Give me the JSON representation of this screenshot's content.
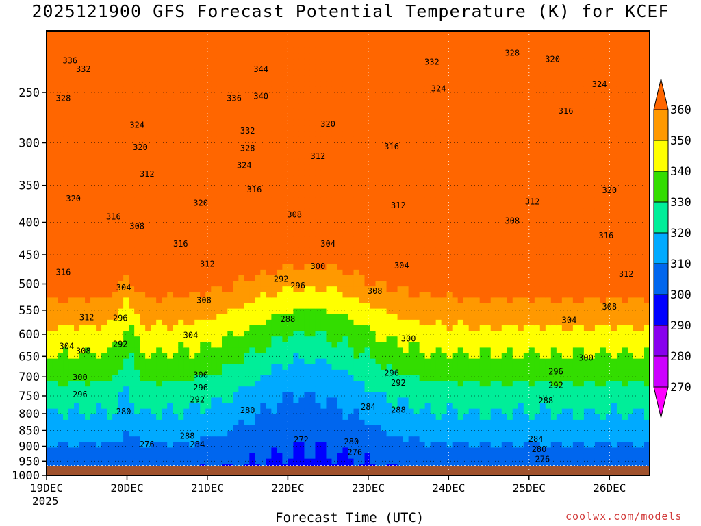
{
  "chart_data": {
    "type": "heatmap",
    "title": "2025121900 GFS Forecast Potential Temperature (K) for KCEF",
    "xlabel": "Forecast Time (UTC)",
    "ylabel": "",
    "x_ticks": [
      "19DEC",
      "20DEC",
      "21DEC",
      "22DEC",
      "23DEC",
      "24DEC",
      "25DEC",
      "26DEC"
    ],
    "x_tick_year": "2025",
    "x_range_hours": [
      0,
      180
    ],
    "y_ticks": [
      250,
      300,
      350,
      400,
      450,
      500,
      550,
      600,
      650,
      700,
      750,
      800,
      850,
      900,
      950,
      1000
    ],
    "y_range_hPa": [
      200,
      1000
    ],
    "y_scale": "log",
    "grid": true,
    "colorbar": {
      "levels": [
        270,
        280,
        290,
        300,
        310,
        320,
        330,
        340,
        350,
        360
      ],
      "colors": [
        "#ff00ff",
        "#cc00ff",
        "#8800ee",
        "#0000ff",
        "#0066ee",
        "#00aaff",
        "#00ee99",
        "#33dd00",
        "#ffff00",
        "#ff9900",
        "#ff6600"
      ],
      "extend": "both",
      "position": "right"
    },
    "contour_labels": [
      {
        "value": "336",
        "t": 7,
        "p": 225
      },
      {
        "value": "332",
        "t": 11,
        "p": 232
      },
      {
        "value": "328",
        "t": 5,
        "p": 258
      },
      {
        "value": "324",
        "t": 27,
        "p": 284
      },
      {
        "value": "320",
        "t": 28,
        "p": 308
      },
      {
        "value": "312",
        "t": 30,
        "p": 339
      },
      {
        "value": "320",
        "t": 8,
        "p": 371
      },
      {
        "value": "316",
        "t": 20,
        "p": 396
      },
      {
        "value": "308",
        "t": 27,
        "p": 410
      },
      {
        "value": "316",
        "t": 40,
        "p": 437
      },
      {
        "value": "316",
        "t": 5,
        "p": 484
      },
      {
        "value": "304",
        "t": 23,
        "p": 512
      },
      {
        "value": "312",
        "t": 12,
        "p": 570
      },
      {
        "value": "296",
        "t": 22,
        "p": 572
      },
      {
        "value": "304",
        "t": 6,
        "p": 633
      },
      {
        "value": "308",
        "t": 11,
        "p": 644
      },
      {
        "value": "292",
        "t": 22,
        "p": 628
      },
      {
        "value": "300",
        "t": 10,
        "p": 708
      },
      {
        "value": "296",
        "t": 10,
        "p": 754
      },
      {
        "value": "280",
        "t": 23,
        "p": 802
      },
      {
        "value": "276",
        "t": 30,
        "p": 903
      },
      {
        "value": "336",
        "t": 56,
        "p": 258
      },
      {
        "value": "344",
        "t": 64,
        "p": 232
      },
      {
        "value": "340",
        "t": 64,
        "p": 256
      },
      {
        "value": "332",
        "t": 60,
        "p": 290
      },
      {
        "value": "328",
        "t": 60,
        "p": 309
      },
      {
        "value": "324",
        "t": 59,
        "p": 329
      },
      {
        "value": "320",
        "t": 46,
        "p": 377
      },
      {
        "value": "316",
        "t": 62,
        "p": 359
      },
      {
        "value": "312",
        "t": 48,
        "p": 470
      },
      {
        "value": "308",
        "t": 47,
        "p": 536
      },
      {
        "value": "304",
        "t": 43,
        "p": 608
      },
      {
        "value": "300",
        "t": 46,
        "p": 702
      },
      {
        "value": "296",
        "t": 46,
        "p": 735
      },
      {
        "value": "292",
        "t": 45,
        "p": 768
      },
      {
        "value": "288",
        "t": 42,
        "p": 876
      },
      {
        "value": "284",
        "t": 45,
        "p": 903
      },
      {
        "value": "280",
        "t": 60,
        "p": 798
      },
      {
        "value": "272",
        "t": 76,
        "p": 888
      },
      {
        "value": "276",
        "t": 92,
        "p": 929
      },
      {
        "value": "280",
        "t": 91,
        "p": 894
      },
      {
        "value": "284",
        "t": 96,
        "p": 788
      },
      {
        "value": "320",
        "t": 84,
        "p": 283
      },
      {
        "value": "312",
        "t": 81,
        "p": 318
      },
      {
        "value": "308",
        "t": 74,
        "p": 393
      },
      {
        "value": "304",
        "t": 84,
        "p": 437
      },
      {
        "value": "300",
        "t": 81,
        "p": 474
      },
      {
        "value": "292",
        "t": 70,
        "p": 496
      },
      {
        "value": "296",
        "t": 75,
        "p": 508
      },
      {
        "value": "288",
        "t": 72,
        "p": 574
      },
      {
        "value": "308",
        "t": 98,
        "p": 518
      },
      {
        "value": "316",
        "t": 103,
        "p": 307
      },
      {
        "value": "312",
        "t": 105,
        "p": 380
      },
      {
        "value": "304",
        "t": 106,
        "p": 473
      },
      {
        "value": "300",
        "t": 108,
        "p": 616
      },
      {
        "value": "296",
        "t": 103,
        "p": 697
      },
      {
        "value": "292",
        "t": 105,
        "p": 723
      },
      {
        "value": "288",
        "t": 105,
        "p": 797
      },
      {
        "value": "332",
        "t": 115,
        "p": 226
      },
      {
        "value": "328",
        "t": 139,
        "p": 219
      },
      {
        "value": "324",
        "t": 117,
        "p": 249
      },
      {
        "value": "320",
        "t": 151,
        "p": 224
      },
      {
        "value": "316",
        "t": 155,
        "p": 270
      },
      {
        "value": "312",
        "t": 145,
        "p": 375
      },
      {
        "value": "308",
        "t": 139,
        "p": 402
      },
      {
        "value": "304",
        "t": 156,
        "p": 576
      },
      {
        "value": "300",
        "t": 161,
        "p": 660
      },
      {
        "value": "296",
        "t": 152,
        "p": 694
      },
      {
        "value": "292",
        "t": 152,
        "p": 729
      },
      {
        "value": "288",
        "t": 149,
        "p": 771
      },
      {
        "value": "284",
        "t": 146,
        "p": 886
      },
      {
        "value": "280",
        "t": 147,
        "p": 919
      },
      {
        "value": "276",
        "t": 148,
        "p": 953
      },
      {
        "value": "324",
        "t": 165,
        "p": 245
      },
      {
        "value": "320",
        "t": 168,
        "p": 360
      },
      {
        "value": "316",
        "t": 167,
        "p": 424
      },
      {
        "value": "312",
        "t": 173,
        "p": 487
      },
      {
        "value": "308",
        "t": 168,
        "p": 549
      }
    ]
  },
  "credit": "coolwx.com/models"
}
